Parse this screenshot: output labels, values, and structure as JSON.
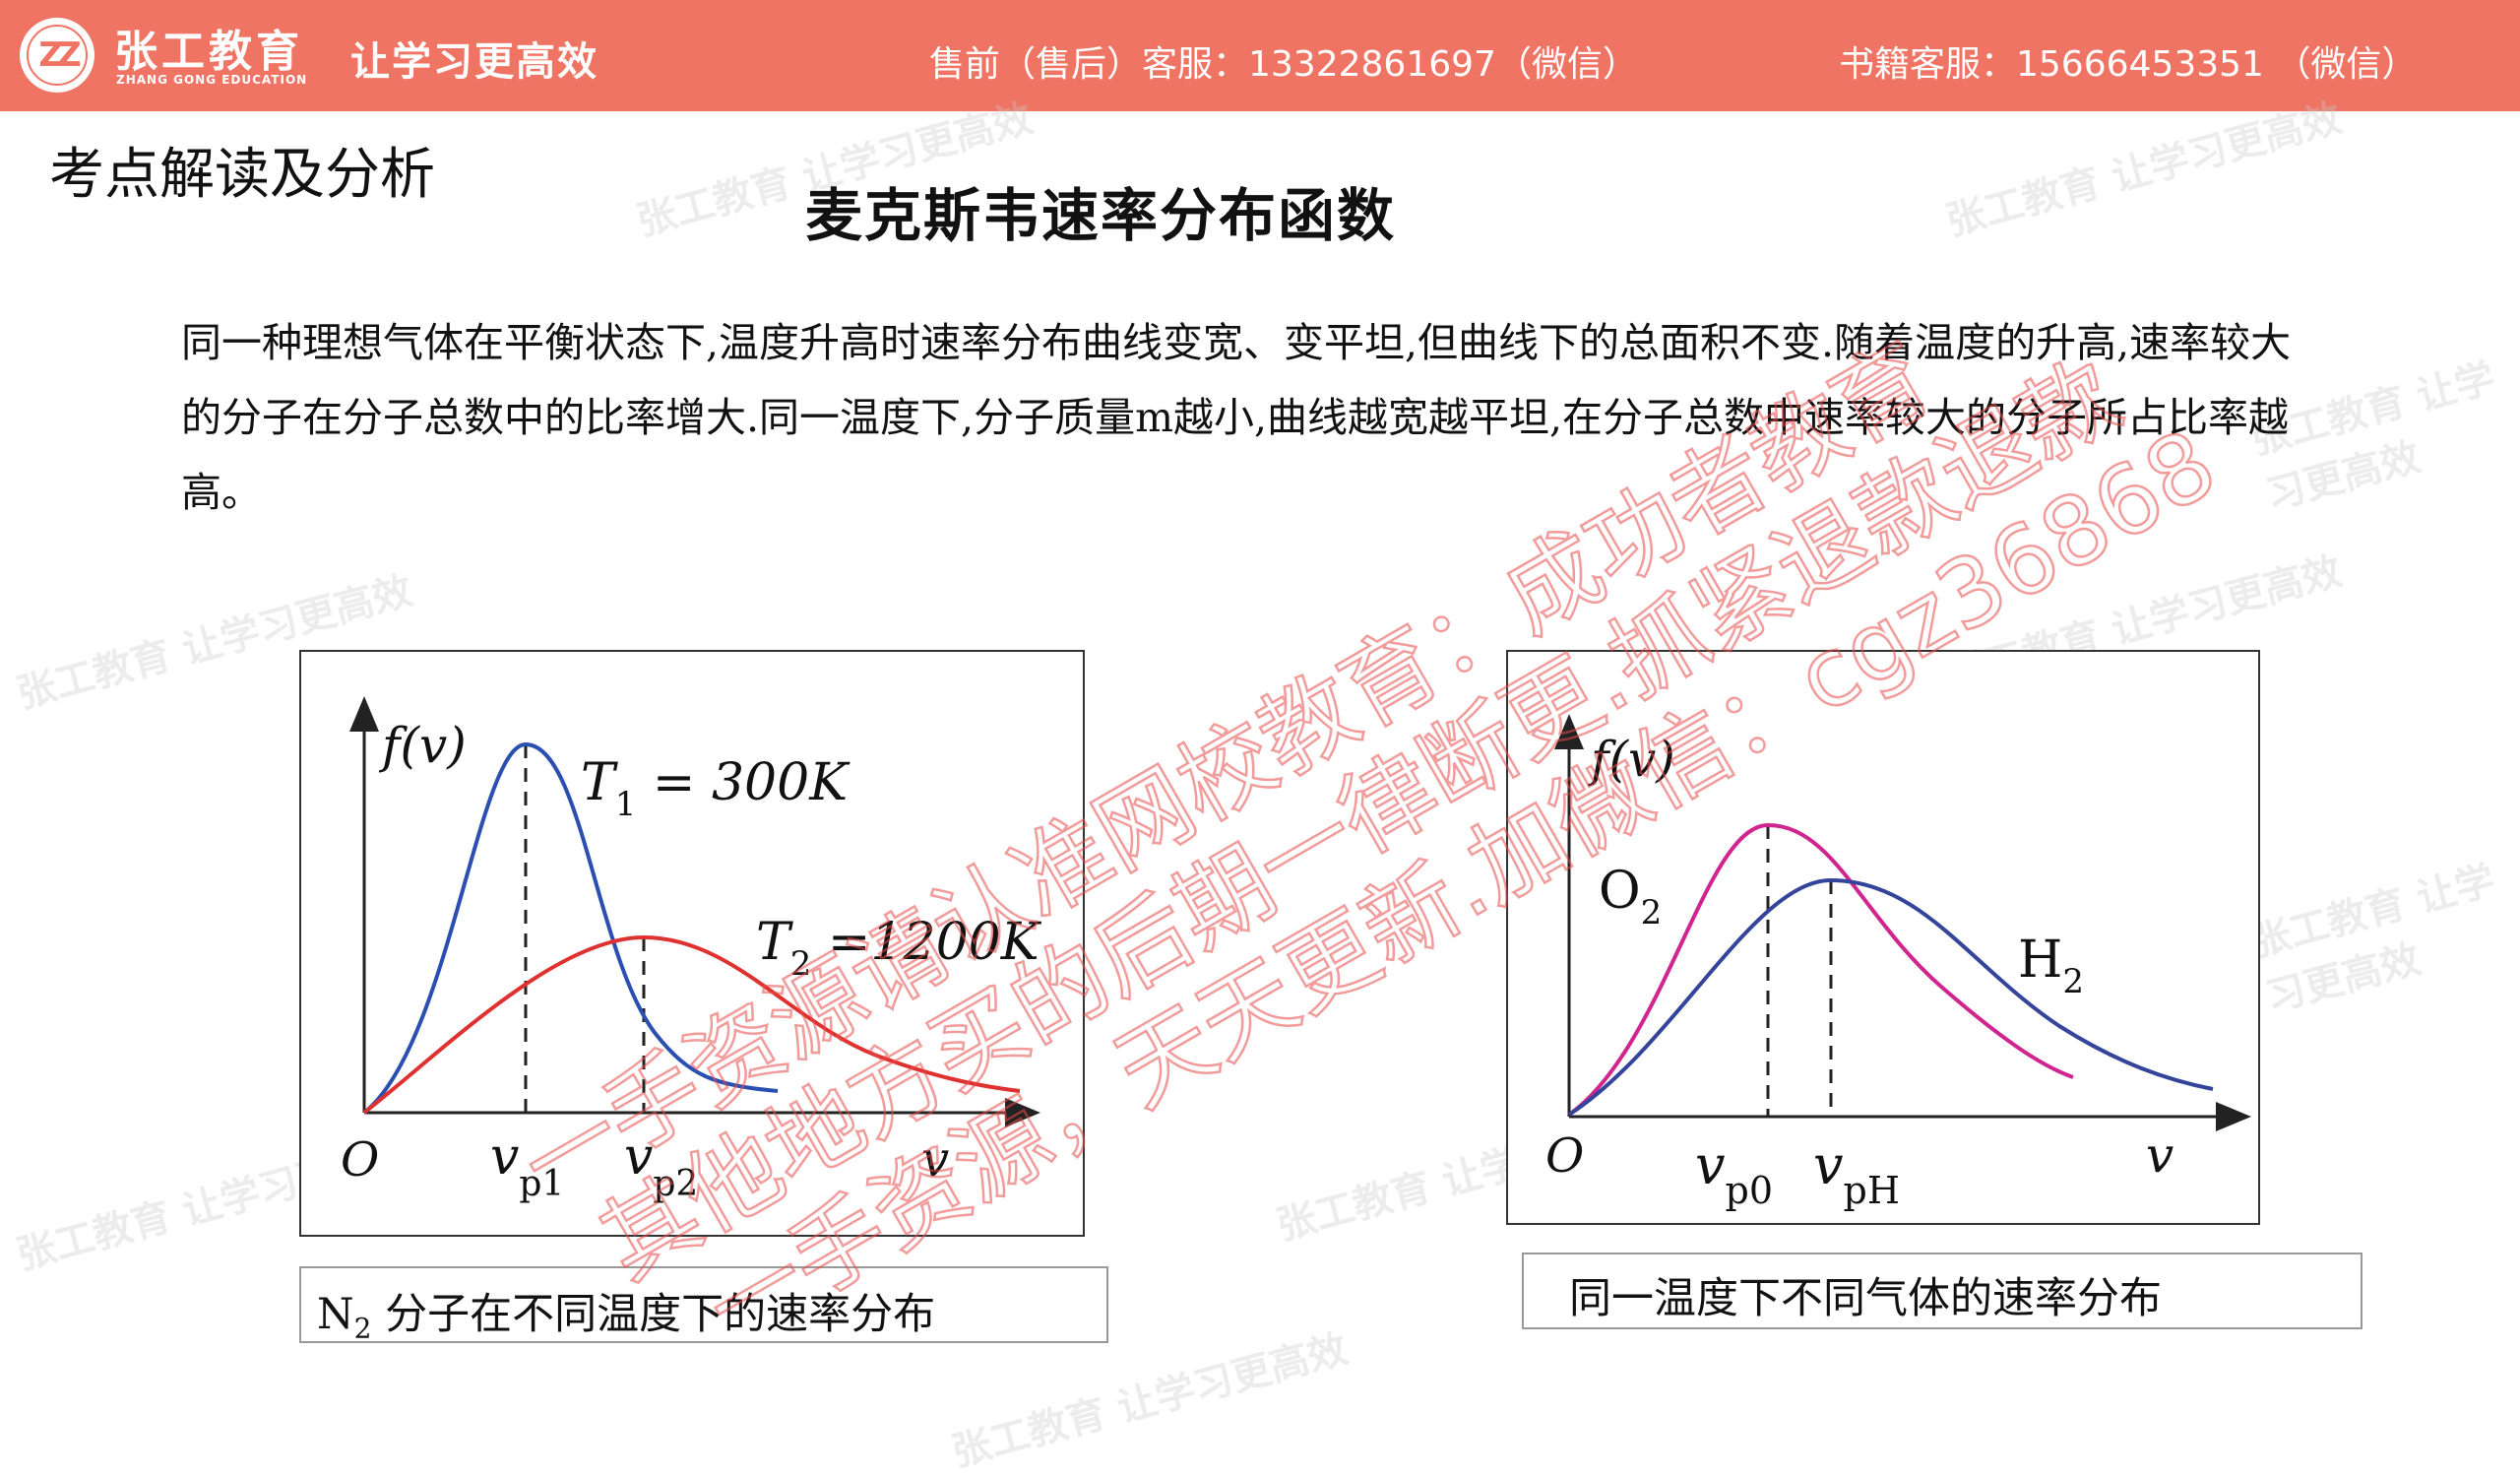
{
  "header": {
    "brand_cn": "张工教育",
    "brand_en": "ZHANG GONG EDUCATION",
    "slogan": "让学习更高效",
    "contact_presale": "售前（售后）客服：13322861697（微信）",
    "contact_books": "书籍客服：15666453351 （微信）"
  },
  "section_title": "考点解读及分析",
  "main_title": "麦克斯韦速率分布函数",
  "paragraph": "同一种理想气体在平衡状态下,温度升高时速率分布曲线变宽、变平坦,但曲线下的总面积不变.随着温度的升高,速率较大的分子在分子总数中的比率增大.同一温度下,分子质量m越小,曲线越宽越平坦,在分子总数中速率较大的分子所占比率越高。",
  "figure1": {
    "y_label": "f(v)",
    "origin": "O",
    "x_label": "v",
    "tick1_main": "v",
    "tick1_sub": "p1",
    "tick2_main": "v",
    "tick2_sub": "p2",
    "curve1_label_main": "T",
    "curve1_label_sub": "1",
    "curve1_label_value": " = 300K",
    "curve2_label_main": "T",
    "curve2_label_sub": "2",
    "curve2_label_value": " =1200K",
    "colors": {
      "curve1": "#2a4fb0",
      "curve2": "#e03131"
    },
    "caption_main": "N",
    "caption_sub": "2",
    "caption_rest": " 分子在不同温度下的速率分布"
  },
  "figure2": {
    "y_label": "f(v)",
    "origin": "O",
    "x_label": "v",
    "tick1_main": "v",
    "tick1_sub": "p0",
    "tick2_main": "v",
    "tick2_sub": "pH",
    "curve_o2_main": "O",
    "curve_o2_sub": "2",
    "curve_h2_main": "H",
    "curve_h2_sub": "2",
    "colors": {
      "o2": "#d0258f",
      "h2": "#34449a"
    },
    "caption": "同一温度下不同气体的速率分布"
  },
  "watermark": {
    "line1": "一手资源请认准网校教育：成功者教育",
    "line2": "其他地方买的后期一律断更.抓紧退款退款",
    "line3": "一手资源，天天更新.加微信：cgz36868",
    "color": "#e94a4a",
    "ghost_text": "张工教育 让学习更高效"
  }
}
